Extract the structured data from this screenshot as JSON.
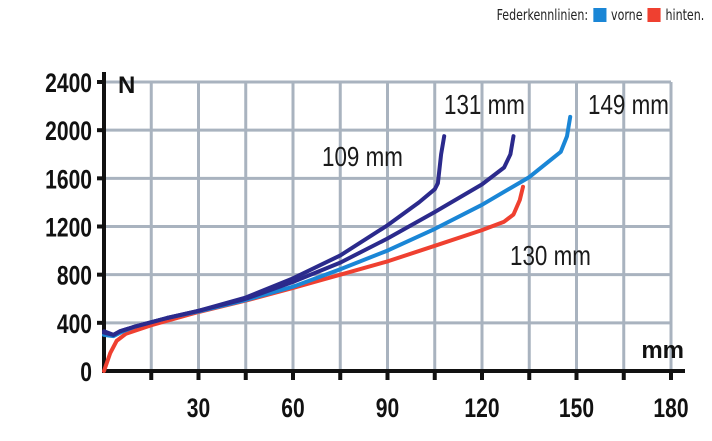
{
  "chart_data": {
    "type": "line",
    "title": "",
    "legend": {
      "title": "Federkennlinien:",
      "position": "top-right",
      "entries": [
        {
          "label": "vorne",
          "color": "#1a86d6"
        },
        {
          "label": "hinten.",
          "color": "#ef4030"
        }
      ]
    },
    "xlabel": "mm",
    "ylabel": "N",
    "xlim": [
      0,
      180
    ],
    "ylim": [
      0,
      2400
    ],
    "x_ticks": [
      30,
      60,
      90,
      120,
      150,
      180
    ],
    "y_ticks": [
      0,
      400,
      800,
      1200,
      1600,
      2000,
      2400
    ],
    "grid": true,
    "series": [
      {
        "label": "109 mm",
        "color": "#2b2a8c",
        "points": [
          [
            0,
            330
          ],
          [
            3,
            300
          ],
          [
            5,
            330
          ],
          [
            10,
            370
          ],
          [
            20,
            440
          ],
          [
            30,
            500
          ],
          [
            45,
            610
          ],
          [
            60,
            770
          ],
          [
            75,
            960
          ],
          [
            90,
            1210
          ],
          [
            100,
            1400
          ],
          [
            105,
            1510
          ],
          [
            106,
            1560
          ],
          [
            107,
            1800
          ],
          [
            108,
            1950
          ]
        ]
      },
      {
        "label": "131 mm",
        "color": "#2b2a8c",
        "points": [
          [
            0,
            320
          ],
          [
            3,
            300
          ],
          [
            5,
            330
          ],
          [
            10,
            370
          ],
          [
            20,
            440
          ],
          [
            30,
            500
          ],
          [
            45,
            600
          ],
          [
            60,
            740
          ],
          [
            75,
            900
          ],
          [
            90,
            1100
          ],
          [
            105,
            1320
          ],
          [
            120,
            1550
          ],
          [
            127,
            1690
          ],
          [
            129,
            1800
          ],
          [
            130,
            1950
          ]
        ]
      },
      {
        "label": "149 mm",
        "color": "#1a86d6",
        "points": [
          [
            0,
            300
          ],
          [
            3,
            290
          ],
          [
            6,
            330
          ],
          [
            10,
            370
          ],
          [
            20,
            440
          ],
          [
            30,
            495
          ],
          [
            45,
            590
          ],
          [
            60,
            700
          ],
          [
            75,
            845
          ],
          [
            90,
            1000
          ],
          [
            105,
            1180
          ],
          [
            120,
            1380
          ],
          [
            135,
            1610
          ],
          [
            145,
            1820
          ],
          [
            147,
            1950
          ],
          [
            148,
            2110
          ]
        ]
      },
      {
        "label": "130 mm",
        "color": "#ef4030",
        "points": [
          [
            0,
            0
          ],
          [
            2,
            150
          ],
          [
            4,
            250
          ],
          [
            7,
            310
          ],
          [
            15,
            380
          ],
          [
            30,
            490
          ],
          [
            45,
            585
          ],
          [
            60,
            690
          ],
          [
            75,
            800
          ],
          [
            90,
            910
          ],
          [
            105,
            1040
          ],
          [
            120,
            1170
          ],
          [
            127,
            1240
          ],
          [
            130,
            1300
          ],
          [
            132,
            1420
          ],
          [
            133,
            1530
          ]
        ]
      }
    ]
  }
}
